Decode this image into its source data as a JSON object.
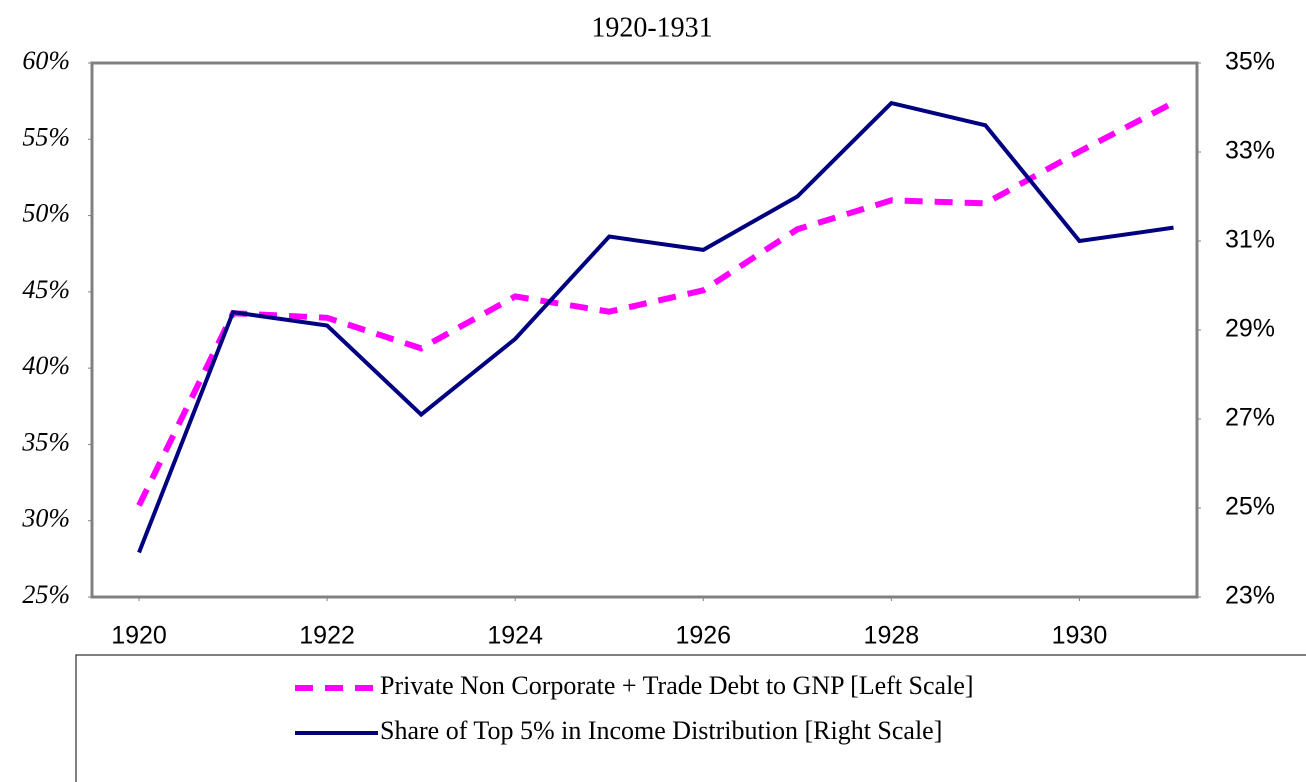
{
  "chart_data": {
    "type": "line",
    "title": "1920-1931",
    "x": [
      1920,
      1921,
      1922,
      1923,
      1924,
      1925,
      1926,
      1927,
      1928,
      1929,
      1930,
      1931
    ],
    "xlim": [
      1919.5,
      1931.25
    ],
    "xticks": [
      1920,
      1922,
      1924,
      1926,
      1928,
      1930
    ],
    "ylim": [
      25,
      60
    ],
    "yticks": [
      {
        "value": 25,
        "label": "25%"
      },
      {
        "value": 30,
        "label": "30%"
      },
      {
        "value": 35,
        "label": "35%"
      },
      {
        "value": 40,
        "label": "40%"
      },
      {
        "value": 45,
        "label": "45%"
      },
      {
        "value": 50,
        "label": "50%"
      },
      {
        "value": 55,
        "label": "55%"
      },
      {
        "value": 60,
        "label": "60%"
      }
    ],
    "y2lim": [
      23,
      35
    ],
    "y2ticks": [
      {
        "value": 23,
        "label": "23%"
      },
      {
        "value": 25,
        "label": "25%"
      },
      {
        "value": 27,
        "label": "27%"
      },
      {
        "value": 29,
        "label": "29%"
      },
      {
        "value": 31,
        "label": "31%"
      },
      {
        "value": 33,
        "label": "33%"
      },
      {
        "value": 35,
        "label": "35%"
      }
    ],
    "series": [
      {
        "name": "Private Non Corporate + Trade Debt to GNP [Left Scale]",
        "color": "#ff00ff",
        "dashed": true,
        "values": [
          31,
          43.6,
          43.3,
          41.3,
          44.7,
          43.7,
          45.1,
          49.1,
          51.0,
          50.8,
          54.2,
          57.4
        ]
      },
      {
        "name": "Share of Top 5% in Income Distribution [Right Scale]",
        "color": "#000080",
        "axis": "y2",
        "values": [
          24.0,
          29.4,
          29.1,
          27.1,
          28.8,
          31.1,
          30.8,
          32.0,
          34.1,
          33.6,
          31.0,
          31.3
        ]
      }
    ]
  }
}
